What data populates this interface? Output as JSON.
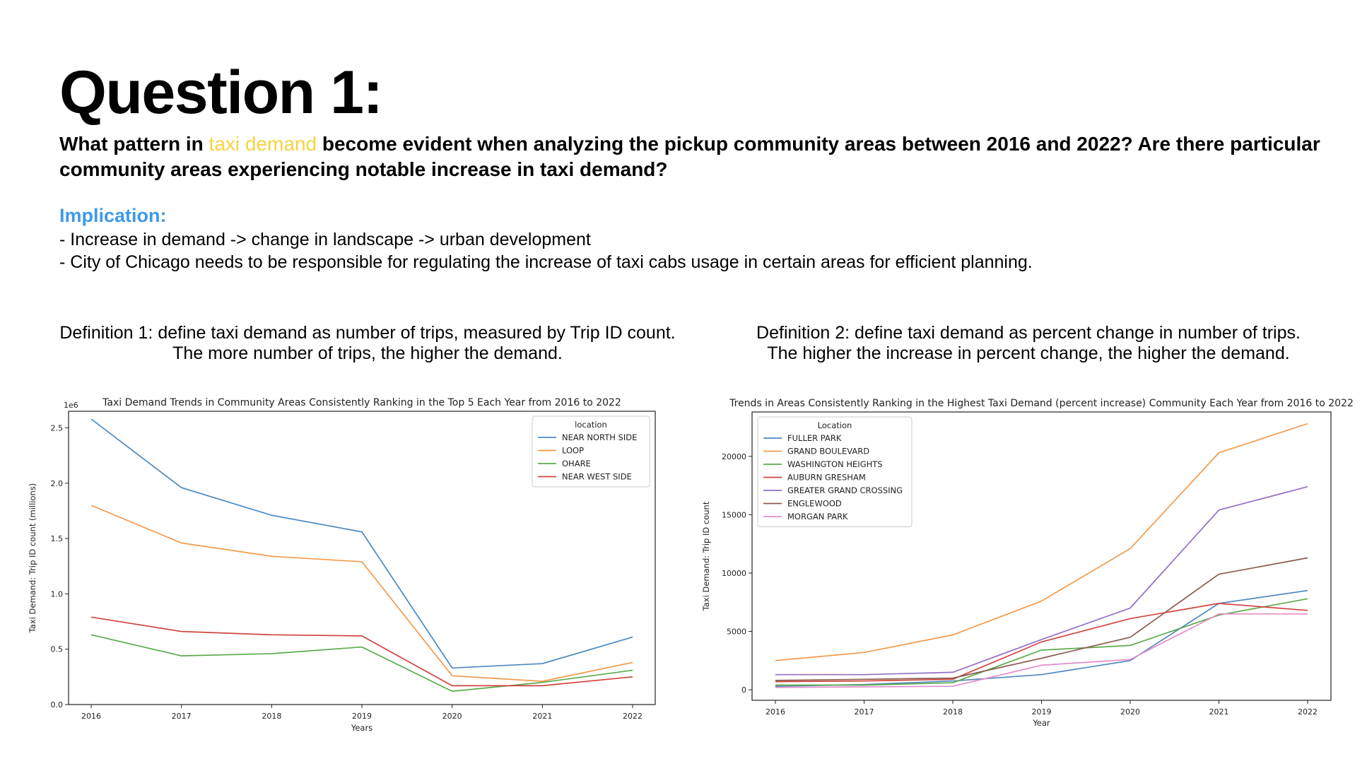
{
  "slide": {
    "title": "Question 1:",
    "question": {
      "part1": "What pattern in ",
      "highlight": "taxi demand",
      "part2": " become evident when analyzing the pickup community areas between 2016 and 2022? Are there particular community areas experiencing notable increase in taxi demand?"
    },
    "implication_label": "Implication:",
    "implications": [
      "- Increase in demand -> change in landscape -> urban development",
      "- City of Chicago needs to be responsible for regulating the increase of taxi cabs usage in certain areas for efficient planning."
    ],
    "definition1": [
      "Definition 1: define taxi demand as number of trips, measured by Trip ID count.",
      "The more number of trips, the higher the demand."
    ],
    "definition2": [
      "Definition 2: define taxi demand as percent change in number of trips.",
      "The higher the increase in percent change, the higher the demand."
    ],
    "colors": {
      "highlight": "#f5d33f",
      "implication": "#3f9ae6"
    }
  },
  "chart_data": [
    {
      "type": "line",
      "title": "Taxi Demand Trends in Community Areas Consistently Ranking in the Top 5 Each Year from 2016 to 2022",
      "xlabel": "Years",
      "ylabel": "Taxi Demand: Trip ID count (millions)",
      "offset_label": "1e6",
      "x": [
        "2016",
        "2017",
        "2018",
        "2019",
        "2020",
        "2021",
        "2022"
      ],
      "yticks": [
        "0.0",
        "0.5",
        "1.0",
        "1.5",
        "2.0",
        "2.5"
      ],
      "ytick_values": [
        0,
        0.5,
        1.0,
        1.5,
        2.0,
        2.5
      ],
      "ylim": [
        0,
        2.65
      ],
      "legend_title": "location",
      "legend_position": "top-right",
      "series": [
        {
          "name": "NEAR NORTH SIDE",
          "color": "#4c88bf",
          "values": [
            2.58,
            1.96,
            1.71,
            1.56,
            0.33,
            0.37,
            0.61
          ]
        },
        {
          "name": "LOOP",
          "color": "#f39a4a",
          "values": [
            1.8,
            1.46,
            1.34,
            1.29,
            0.26,
            0.21,
            0.38
          ]
        },
        {
          "name": "OHARE",
          "color": "#5aab4c",
          "values": [
            0.63,
            0.44,
            0.46,
            0.52,
            0.12,
            0.2,
            0.31
          ]
        },
        {
          "name": "NEAR WEST SIDE",
          "color": "#d1453f",
          "values": [
            0.79,
            0.66,
            0.63,
            0.62,
            0.17,
            0.17,
            0.25
          ]
        }
      ]
    },
    {
      "type": "line",
      "title": "Trends in Areas Consistently Ranking in the Highest Taxi Demand (percent increase) Community Each Year from 2016 to 2022",
      "xlabel": "Year",
      "ylabel": "Taxi Demand: Trip ID count",
      "x": [
        "2016",
        "2017",
        "2018",
        "2019",
        "2020",
        "2021",
        "2022"
      ],
      "yticks": [
        "0",
        "5000",
        "10000",
        "15000",
        "20000"
      ],
      "ytick_values": [
        0,
        5000,
        10000,
        15000,
        20000
      ],
      "ylim": [
        -900,
        23800
      ],
      "legend_title": "Location",
      "legend_position": "top-left",
      "series": [
        {
          "name": "FULLER PARK",
          "color": "#4c88bf",
          "values": [
            300,
            450,
            750,
            1300,
            2500,
            7400,
            8500
          ]
        },
        {
          "name": "GRAND BOULEVARD",
          "color": "#f39a4a",
          "values": [
            2500,
            3200,
            4700,
            7600,
            12100,
            20300,
            22800
          ]
        },
        {
          "name": "WASHINGTON HEIGHTS",
          "color": "#5aab4c",
          "values": [
            400,
            400,
            600,
            3400,
            3800,
            6400,
            7800
          ]
        },
        {
          "name": "AUBURN GRESHAM",
          "color": "#d1453f",
          "values": [
            700,
            750,
            900,
            4100,
            6100,
            7400,
            6800
          ]
        },
        {
          "name": "GREATER GRAND CROSSING",
          "color": "#9370c4",
          "values": [
            1300,
            1300,
            1500,
            4300,
            7000,
            15400,
            17400
          ]
        },
        {
          "name": "ENGLEWOOD",
          "color": "#8c5c4e",
          "values": [
            800,
            900,
            1000,
            2700,
            4500,
            9900,
            11300
          ]
        },
        {
          "name": "MORGAN PARK",
          "color": "#e58ccb",
          "values": [
            200,
            250,
            300,
            2100,
            2600,
            6500,
            6500
          ]
        }
      ]
    }
  ]
}
